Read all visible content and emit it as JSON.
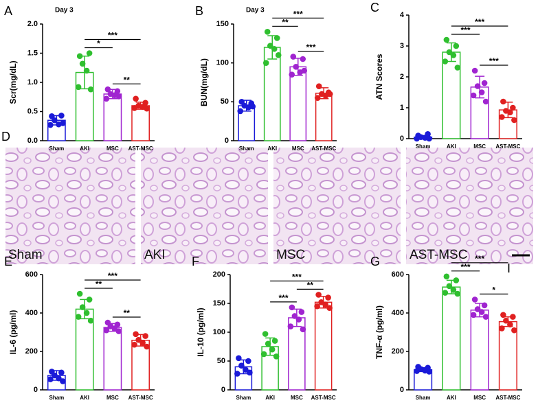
{
  "chart_data": [
    {
      "type": "bar",
      "panel": "A",
      "title": "Day 3",
      "ylabel": "Scr(mg/dL)",
      "categories": [
        "Sham",
        "AKI",
        "MSC",
        "AST-MSC"
      ],
      "colors": [
        "#1a1ad8",
        "#2fbf2f",
        "#a024d0",
        "#e02020"
      ],
      "values": [
        0.35,
        1.17,
        0.8,
        0.6
      ],
      "errors": [
        0.08,
        0.28,
        0.08,
        0.06
      ],
      "points": [
        [
          0.42,
          0.43,
          0.35,
          0.28,
          0.27,
          0.3
        ],
        [
          1.45,
          1.5,
          1.32,
          1.2,
          0.92,
          0.88
        ],
        [
          0.88,
          0.85,
          0.8,
          0.78,
          0.72,
          0.76
        ],
        [
          0.72,
          0.65,
          0.6,
          0.58,
          0.56,
          0.55
        ]
      ],
      "ylim": [
        0,
        2
      ],
      "yticks": [
        {
          "value": 0,
          "label": "0.0"
        },
        {
          "value": 0.5,
          "label": "0.5"
        },
        {
          "value": 1,
          "label": "1.0"
        },
        {
          "value": 1.5,
          "label": "1.5"
        },
        {
          "value": 2,
          "label": "2.0"
        }
      ],
      "brackets": [
        {
          "from": "AKI",
          "to": "MSC",
          "label": "*"
        },
        {
          "from": "AKI",
          "to": "AST-MSC",
          "label": "***"
        },
        {
          "from": "MSC",
          "to": "AST-MSC",
          "label": "**"
        }
      ]
    },
    {
      "type": "bar",
      "panel": "B",
      "title": "Day 3",
      "ylabel": "BUN(mg/dL)",
      "categories": [
        "Sham",
        "AKI",
        "MSC",
        "AST-MSC"
      ],
      "colors": [
        "#1a1ad8",
        "#2fbf2f",
        "#a024d0",
        "#e02020"
      ],
      "values": [
        45,
        120,
        95,
        61
      ],
      "errors": [
        7,
        15,
        11,
        7
      ],
      "points": [
        [
          50,
          48,
          45,
          43,
          38,
          44
        ],
        [
          140,
          132,
          122,
          118,
          100,
          110
        ],
        [
          108,
          105,
          95,
          88,
          85,
          90
        ],
        [
          70,
          62,
          60,
          58,
          55,
          60
        ]
      ],
      "ylim": [
        0,
        150
      ],
      "yticks": [
        0,
        50,
        100,
        150
      ],
      "brackets": [
        {
          "from": "AKI",
          "to": "MSC",
          "label": "**"
        },
        {
          "from": "AKI",
          "to": "AST-MSC",
          "label": "***"
        },
        {
          "from": "MSC",
          "to": "AST-MSC",
          "label": "***"
        }
      ]
    },
    {
      "type": "bar",
      "panel": "C",
      "ylabel": "ATN Scores",
      "categories": [
        "Sham",
        "AKI",
        "MSC",
        "AST-MSC"
      ],
      "colors": [
        "#1a1ad8",
        "#2fbf2f",
        "#a024d0",
        "#e02020"
      ],
      "values": [
        0.05,
        2.8,
        1.67,
        0.93
      ],
      "errors": [
        0.05,
        0.3,
        0.35,
        0.25
      ],
      "points": [
        [
          0.1,
          0.15,
          0.05,
          0.03,
          0,
          0
        ],
        [
          3.2,
          3,
          2.8,
          2.7,
          2.5,
          2.3
        ],
        [
          2.2,
          1.8,
          1.7,
          1.5,
          1.4,
          1.2
        ],
        [
          1.2,
          1,
          0.9,
          0.85,
          0.7,
          0.6
        ]
      ],
      "ylim": [
        0,
        4
      ],
      "yticks": [
        0,
        1,
        2,
        3,
        4
      ],
      "brackets": [
        {
          "from": "AKI",
          "to": "MSC",
          "label": "***"
        },
        {
          "from": "AKI",
          "to": "AST-MSC",
          "label": "***"
        },
        {
          "from": "MSC",
          "to": "AST-MSC",
          "label": "***"
        }
      ]
    },
    {
      "type": "bar",
      "panel": "E",
      "ylabel": "IL-6  (pg/ml)",
      "categories": [
        "Sham",
        "AKI",
        "MSC",
        "AST-MSC"
      ],
      "colors": [
        "#1a1ad8",
        "#2fbf2f",
        "#a024d0",
        "#e02020"
      ],
      "values": [
        75,
        420,
        325,
        258
      ],
      "errors": [
        25,
        50,
        20,
        30
      ],
      "points": [
        [
          95,
          90,
          75,
          60,
          55,
          45
        ],
        [
          500,
          470,
          430,
          400,
          380,
          360
        ],
        [
          350,
          340,
          330,
          320,
          310,
          305
        ],
        [
          290,
          280,
          260,
          245,
          235,
          225
        ]
      ],
      "ylim": [
        0,
        600
      ],
      "yticks": [
        0,
        200,
        400,
        600
      ],
      "brackets": [
        {
          "from": "AKI",
          "to": "MSC",
          "label": "**"
        },
        {
          "from": "AKI",
          "to": "AST-MSC",
          "label": "***"
        },
        {
          "from": "MSC",
          "to": "AST-MSC",
          "label": "**"
        }
      ]
    },
    {
      "type": "bar",
      "panel": "F",
      "ylabel": "IL-10  (pg/ml)",
      "categories": [
        "Sham",
        "AKI",
        "MSC",
        "AST-MSC"
      ],
      "colors": [
        "#1a1ad8",
        "#2fbf2f",
        "#a024d0",
        "#e02020"
      ],
      "values": [
        40,
        75,
        125,
        152
      ],
      "errors": [
        12,
        15,
        15,
        10
      ],
      "points": [
        [
          55,
          50,
          42,
          35,
          28,
          30
        ],
        [
          97,
          85,
          80,
          70,
          62,
          58
        ],
        [
          143,
          135,
          128,
          122,
          110,
          105
        ],
        [
          165,
          160,
          152,
          148,
          145,
          142
        ]
      ],
      "ylim": [
        0,
        200
      ],
      "yticks": [
        0,
        50,
        100,
        150,
        200
      ],
      "brackets": [
        {
          "from": "MSC",
          "to": "AST-MSC",
          "label": "**"
        },
        {
          "from": "AKI",
          "to": "MSC",
          "label": "***"
        },
        {
          "from": "AKI",
          "to": "AST-MSC",
          "label": "***"
        }
      ]
    },
    {
      "type": "bar",
      "panel": "G",
      "annotation": "I",
      "ylabel": "TNF-α  (pg/ml)",
      "categories": [
        "Sham",
        "AKI",
        "MSC",
        "AST-MSC"
      ],
      "colors": [
        "#1a1ad8",
        "#2fbf2f",
        "#a024d0",
        "#e02020"
      ],
      "values": [
        105,
        535,
        415,
        355
      ],
      "errors": [
        10,
        35,
        35,
        25
      ],
      "points": [
        [
          120,
          115,
          108,
          100,
          98,
          95
        ],
        [
          590,
          570,
          540,
          520,
          505,
          500
        ],
        [
          470,
          440,
          420,
          405,
          390,
          380
        ],
        [
          390,
          380,
          360,
          340,
          320,
          310
        ]
      ],
      "ylim": [
        0,
        600
      ],
      "yticks": [
        0,
        200,
        400,
        600
      ],
      "brackets": [
        {
          "from": "AKI",
          "to": "MSC",
          "label": "***"
        },
        {
          "from": "AKI",
          "to": "AST-MSC",
          "label": "***"
        },
        {
          "from": "MSC",
          "to": "AST-MSC",
          "label": "*"
        }
      ]
    }
  ],
  "histology": {
    "panel": "D",
    "images": [
      "Sham",
      "AKI",
      "MSC",
      "AST-MSC"
    ]
  }
}
